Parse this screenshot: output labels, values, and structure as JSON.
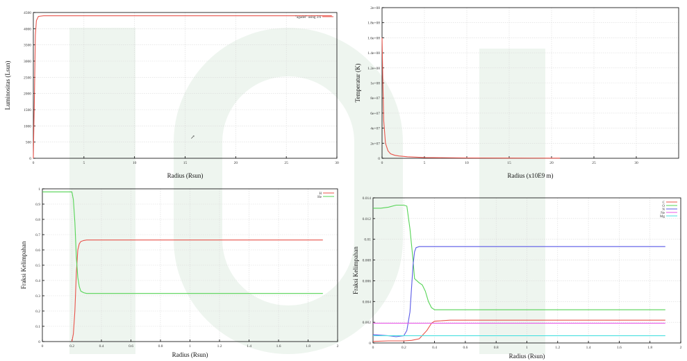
{
  "colors": {
    "red": "#e8534a",
    "green": "#55d455",
    "blue": "#5a5ae6",
    "magenta": "#e85ae8",
    "cyan": "#4ae0e0",
    "watermark": "#eef5ef"
  },
  "cursor": {
    "icon": "arrow-cursor-icon",
    "glyph": "↗"
  },
  "chart_data": [
    {
      "type": "line",
      "xlabel": "Radius (Rsun)",
      "ylabel": "Luminositas (Lsun)",
      "xlim": [
        0,
        30
      ],
      "ylim": [
        0,
        4500
      ],
      "xticks": [
        0,
        5,
        10,
        15,
        20,
        25,
        30
      ],
      "yticks": [
        0,
        500,
        1000,
        1500,
        2000,
        2500,
        3000,
        3500,
        4000,
        4500
      ],
      "grid": true,
      "legend": "top-right",
      "series": [
        {
          "name": "\"agadel\" using 3:6",
          "color": "red",
          "x": [
            0,
            0.05,
            0.1,
            0.15,
            0.2,
            0.3,
            0.5,
            1,
            2,
            5,
            10,
            15,
            20,
            25,
            29.5
          ],
          "y": [
            0,
            900,
            1800,
            2800,
            3800,
            4250,
            4380,
            4400,
            4400,
            4400,
            4400,
            4400,
            4400,
            4400,
            4400
          ]
        }
      ]
    },
    {
      "type": "line",
      "xlabel": "Radius (x10E9 m)",
      "ylabel": "Temperatur (K)",
      "xlim": [
        0,
        35
      ],
      "ylim": [
        0,
        200000000
      ],
      "xticks": [
        0,
        5,
        10,
        15,
        20,
        25,
        30
      ],
      "yticks": [
        0,
        20000000,
        40000000,
        60000000,
        80000000,
        100000000,
        120000000,
        140000000,
        160000000,
        180000000,
        200000000
      ],
      "yticklabels": [
        "0",
        "2e+07",
        "4e+07",
        "6e+07",
        "8e+07",
        "1e+08",
        "1.2e+08",
        "1.4e+08",
        "1.6e+08",
        "1.8e+08",
        "2e+08"
      ],
      "grid": true,
      "series": [
        {
          "color": "red",
          "x": [
            0,
            0.1,
            0.2,
            0.4,
            0.7,
            1,
            1.5,
            2,
            3,
            5,
            10,
            15,
            20,
            21
          ],
          "y": [
            160000000,
            100000000,
            50000000,
            20000000,
            10000000,
            6000000,
            4000000,
            3000000,
            2000000,
            1000000,
            500000,
            300000,
            200000,
            150000
          ]
        }
      ]
    },
    {
      "type": "line",
      "xlabel": "Radius (Rsun)",
      "ylabel": "Fraksi Kelimpahan",
      "xlim": [
        0,
        2
      ],
      "ylim": [
        0,
        1
      ],
      "xticks": [
        0,
        0.2,
        0.4,
        0.6,
        0.8,
        1,
        1.2,
        1.4,
        1.6,
        1.8,
        2
      ],
      "yticks": [
        0,
        0.1,
        0.2,
        0.3,
        0.4,
        0.5,
        0.6,
        0.7,
        0.8,
        0.9,
        1
      ],
      "grid": true,
      "legend": "top-right",
      "series": [
        {
          "name": "H",
          "color": "red",
          "x": [
            0.2,
            0.21,
            0.22,
            0.23,
            0.24,
            0.25,
            0.26,
            0.28,
            0.3,
            0.5,
            1,
            1.5,
            1.9
          ],
          "y": [
            0,
            0.05,
            0.2,
            0.45,
            0.6,
            0.64,
            0.655,
            0.662,
            0.665,
            0.665,
            0.665,
            0.665,
            0.665
          ]
        },
        {
          "name": "He",
          "color": "green",
          "x": [
            0,
            0.1,
            0.2,
            0.21,
            0.22,
            0.23,
            0.24,
            0.25,
            0.26,
            0.28,
            0.3,
            0.5,
            1,
            1.5,
            1.9
          ],
          "y": [
            0.98,
            0.98,
            0.98,
            0.93,
            0.78,
            0.55,
            0.42,
            0.36,
            0.33,
            0.32,
            0.315,
            0.315,
            0.315,
            0.315,
            0.315
          ]
        }
      ]
    },
    {
      "type": "line",
      "xlabel": "Radius (Rsun)",
      "ylabel": "Fraksi Kelimpahan",
      "xlim": [
        0,
        2
      ],
      "ylim": [
        0,
        0.014
      ],
      "xticks": [
        0,
        0.2,
        0.4,
        0.6,
        0.8,
        1,
        1.2,
        1.4,
        1.6,
        1.8,
        2
      ],
      "yticks": [
        0,
        0.002,
        0.004,
        0.006,
        0.008,
        0.01,
        0.012,
        0.014
      ],
      "grid": true,
      "legend": "top-right",
      "series": [
        {
          "name": "C",
          "color": "red",
          "x": [
            0,
            0.1,
            0.2,
            0.25,
            0.3,
            0.35,
            0.38,
            0.4,
            0.5,
            1,
            1.5,
            1.9
          ],
          "y": [
            0.00015,
            0.0002,
            0.0002,
            0.00025,
            0.0004,
            0.0012,
            0.0019,
            0.0021,
            0.0022,
            0.0022,
            0.0022,
            0.0022
          ]
        },
        {
          "name": "O",
          "color": "green",
          "x": [
            0,
            0.05,
            0.1,
            0.15,
            0.2,
            0.22,
            0.24,
            0.26,
            0.27,
            0.3,
            0.32,
            0.34,
            0.36,
            0.38,
            0.4,
            0.5,
            1,
            1.5,
            1.9
          ],
          "y": [
            0.013,
            0.013,
            0.0131,
            0.0133,
            0.0133,
            0.0132,
            0.011,
            0.008,
            0.0062,
            0.0058,
            0.0056,
            0.005,
            0.004,
            0.0034,
            0.0032,
            0.0032,
            0.0032,
            0.0032,
            0.0032
          ]
        },
        {
          "name": "N",
          "color": "blue",
          "x": [
            0,
            0.1,
            0.15,
            0.2,
            0.22,
            0.24,
            0.26,
            0.27,
            0.28,
            0.3,
            0.4,
            1,
            1.5,
            1.9
          ],
          "y": [
            0.0008,
            0.0007,
            0.0006,
            0.0007,
            0.0012,
            0.003,
            0.0075,
            0.0088,
            0.0092,
            0.0093,
            0.0093,
            0.0093,
            0.0093,
            0.0093
          ]
        },
        {
          "name": "Ne",
          "color": "magenta",
          "x": [
            0,
            1.9
          ],
          "y": [
            0.0019,
            0.0019
          ]
        },
        {
          "name": "Mg",
          "color": "cyan",
          "x": [
            0,
            1.9
          ],
          "y": [
            0.0007,
            0.0007
          ]
        }
      ]
    }
  ]
}
